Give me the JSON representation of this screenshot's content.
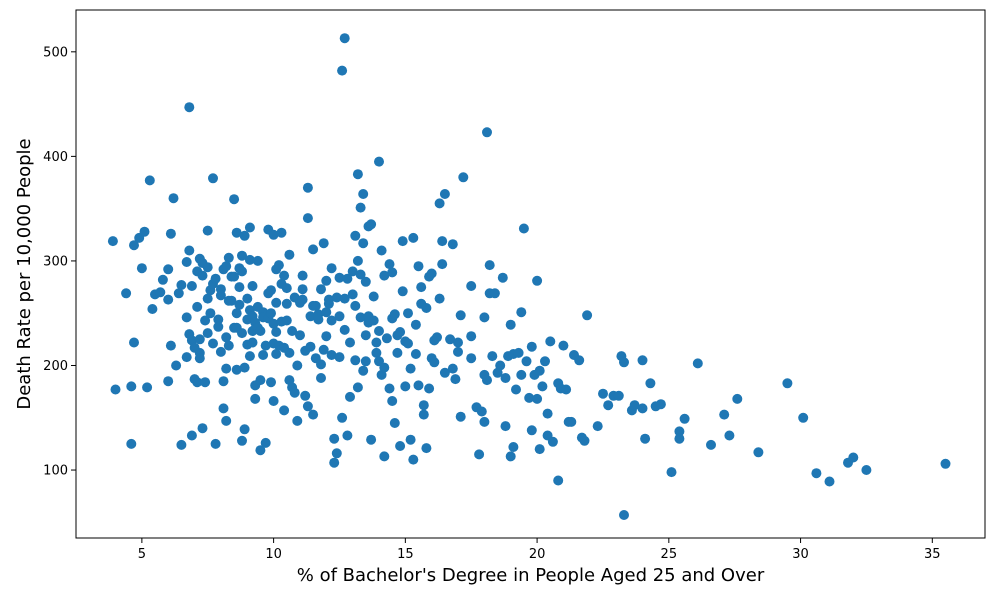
{
  "chart_data": {
    "type": "scatter",
    "title": "",
    "xlabel": "% of Bachelor's Degree in People Aged 25 and Over",
    "ylabel": "Death Rate per 10,000 People",
    "xlim": [
      2.5,
      37.0
    ],
    "ylim": [
      35,
      540
    ],
    "x_ticks": [
      5,
      10,
      15,
      20,
      25,
      30,
      35
    ],
    "y_ticks": [
      100,
      200,
      300,
      400,
      500
    ],
    "grid": false,
    "marker_color": "#1f77b4",
    "points": [
      [
        3.9,
        319
      ],
      [
        4.0,
        177
      ],
      [
        4.4,
        269
      ],
      [
        4.6,
        125
      ],
      [
        4.6,
        180
      ],
      [
        4.7,
        315
      ],
      [
        4.7,
        222
      ],
      [
        4.9,
        322
      ],
      [
        5.0,
        293
      ],
      [
        5.1,
        328
      ],
      [
        5.2,
        179
      ],
      [
        5.3,
        377
      ],
      [
        5.4,
        254
      ],
      [
        5.5,
        268
      ],
      [
        5.7,
        270
      ],
      [
        5.8,
        282
      ],
      [
        6.0,
        292
      ],
      [
        6.0,
        185
      ],
      [
        6.0,
        263
      ],
      [
        6.1,
        326
      ],
      [
        6.1,
        219
      ],
      [
        6.2,
        360
      ],
      [
        6.3,
        200
      ],
      [
        6.4,
        269
      ],
      [
        6.5,
        277
      ],
      [
        6.5,
        124
      ],
      [
        6.7,
        208
      ],
      [
        6.7,
        299
      ],
      [
        6.7,
        246
      ],
      [
        6.8,
        310
      ],
      [
        6.8,
        230
      ],
      [
        6.8,
        447
      ],
      [
        6.9,
        224
      ],
      [
        6.9,
        276
      ],
      [
        6.9,
        133
      ],
      [
        7.0,
        217
      ],
      [
        7.0,
        187
      ],
      [
        7.1,
        256
      ],
      [
        7.1,
        184
      ],
      [
        7.1,
        290
      ],
      [
        7.2,
        225
      ],
      [
        7.2,
        302
      ],
      [
        7.2,
        212
      ],
      [
        7.2,
        207
      ],
      [
        7.3,
        286
      ],
      [
        7.3,
        298
      ],
      [
        7.3,
        140
      ],
      [
        7.4,
        243
      ],
      [
        7.4,
        184
      ],
      [
        7.5,
        231
      ],
      [
        7.5,
        264
      ],
      [
        7.5,
        294
      ],
      [
        7.5,
        329
      ],
      [
        7.6,
        250
      ],
      [
        7.6,
        272
      ],
      [
        7.7,
        278
      ],
      [
        7.7,
        221
      ],
      [
        7.7,
        379
      ],
      [
        7.8,
        283
      ],
      [
        7.8,
        125
      ],
      [
        7.9,
        244
      ],
      [
        7.9,
        237
      ],
      [
        8.0,
        213
      ],
      [
        8.0,
        273
      ],
      [
        8.0,
        267
      ],
      [
        8.1,
        185
      ],
      [
        8.1,
        292
      ],
      [
        8.1,
        159
      ],
      [
        8.2,
        295
      ],
      [
        8.2,
        227
      ],
      [
        8.2,
        147
      ],
      [
        8.2,
        197
      ],
      [
        8.3,
        303
      ],
      [
        8.3,
        262
      ],
      [
        8.3,
        219
      ],
      [
        8.4,
        262
      ],
      [
        8.4,
        285
      ],
      [
        8.5,
        236
      ],
      [
        8.5,
        359
      ],
      [
        8.5,
        285
      ],
      [
        8.6,
        250
      ],
      [
        8.6,
        196
      ],
      [
        8.6,
        327
      ],
      [
        8.6,
        236
      ],
      [
        8.7,
        293
      ],
      [
        8.7,
        275
      ],
      [
        8.7,
        258
      ],
      [
        8.8,
        231
      ],
      [
        8.8,
        305
      ],
      [
        8.8,
        128
      ],
      [
        8.8,
        290
      ],
      [
        8.9,
        139
      ],
      [
        8.9,
        324
      ],
      [
        8.9,
        198
      ],
      [
        9.0,
        244
      ],
      [
        9.0,
        220
      ],
      [
        9.0,
        264
      ],
      [
        9.1,
        301
      ],
      [
        9.1,
        209
      ],
      [
        9.1,
        253
      ],
      [
        9.1,
        332
      ],
      [
        9.2,
        233
      ],
      [
        9.2,
        276
      ],
      [
        9.2,
        222
      ],
      [
        9.2,
        247
      ],
      [
        9.3,
        168
      ],
      [
        9.3,
        241
      ],
      [
        9.3,
        181
      ],
      [
        9.3,
        235
      ],
      [
        9.4,
        236
      ],
      [
        9.4,
        256
      ],
      [
        9.4,
        300
      ],
      [
        9.5,
        119
      ],
      [
        9.5,
        186
      ],
      [
        9.5,
        233
      ],
      [
        9.6,
        251
      ],
      [
        9.6,
        246
      ],
      [
        9.6,
        210
      ],
      [
        9.7,
        126
      ],
      [
        9.7,
        219
      ],
      [
        9.8,
        269
      ],
      [
        9.8,
        330
      ],
      [
        9.8,
        245
      ],
      [
        9.9,
        184
      ],
      [
        9.9,
        272
      ],
      [
        9.9,
        250
      ],
      [
        10.0,
        240
      ],
      [
        10.0,
        166
      ],
      [
        10.0,
        221
      ],
      [
        10.0,
        325
      ],
      [
        10.1,
        260
      ],
      [
        10.1,
        211
      ],
      [
        10.1,
        292
      ],
      [
        10.1,
        232
      ],
      [
        10.2,
        296
      ],
      [
        10.2,
        219
      ],
      [
        10.3,
        242
      ],
      [
        10.3,
        327
      ],
      [
        10.3,
        278
      ],
      [
        10.4,
        157
      ],
      [
        10.4,
        286
      ],
      [
        10.4,
        217
      ],
      [
        10.5,
        259
      ],
      [
        10.5,
        274
      ],
      [
        10.5,
        243
      ],
      [
        10.6,
        306
      ],
      [
        10.6,
        186
      ],
      [
        10.6,
        212
      ],
      [
        10.7,
        179
      ],
      [
        10.7,
        233
      ],
      [
        10.8,
        265
      ],
      [
        10.8,
        174
      ],
      [
        10.9,
        200
      ],
      [
        10.9,
        147
      ],
      [
        11.0,
        260
      ],
      [
        11.0,
        229
      ],
      [
        11.1,
        286
      ],
      [
        11.1,
        263
      ],
      [
        11.1,
        273
      ],
      [
        11.2,
        214
      ],
      [
        11.2,
        171
      ],
      [
        11.3,
        341
      ],
      [
        11.3,
        161
      ],
      [
        11.3,
        370
      ],
      [
        11.4,
        218
      ],
      [
        11.4,
        247
      ],
      [
        11.5,
        311
      ],
      [
        11.5,
        153
      ],
      [
        11.5,
        257
      ],
      [
        11.6,
        257
      ],
      [
        11.6,
        207
      ],
      [
        11.7,
        249
      ],
      [
        11.7,
        244
      ],
      [
        11.8,
        273
      ],
      [
        11.8,
        188
      ],
      [
        11.8,
        201
      ],
      [
        11.9,
        317
      ],
      [
        11.9,
        215
      ],
      [
        12.0,
        251
      ],
      [
        12.0,
        281
      ],
      [
        12.0,
        228
      ],
      [
        12.1,
        259
      ],
      [
        12.1,
        263
      ],
      [
        12.2,
        293
      ],
      [
        12.2,
        243
      ],
      [
        12.2,
        210
      ],
      [
        12.3,
        107
      ],
      [
        12.3,
        130
      ],
      [
        12.4,
        116
      ],
      [
        12.4,
        265
      ],
      [
        12.5,
        284
      ],
      [
        12.5,
        208
      ],
      [
        12.5,
        247
      ],
      [
        12.6,
        150
      ],
      [
        12.6,
        482
      ],
      [
        12.7,
        513
      ],
      [
        12.7,
        234
      ],
      [
        12.7,
        264
      ],
      [
        12.8,
        283
      ],
      [
        12.8,
        133
      ],
      [
        12.9,
        222
      ],
      [
        12.9,
        170
      ],
      [
        13.0,
        290
      ],
      [
        13.0,
        268
      ],
      [
        13.1,
        324
      ],
      [
        13.1,
        257
      ],
      [
        13.1,
        205
      ],
      [
        13.2,
        383
      ],
      [
        13.2,
        179
      ],
      [
        13.2,
        300
      ],
      [
        13.3,
        287
      ],
      [
        13.3,
        351
      ],
      [
        13.3,
        246
      ],
      [
        13.4,
        317
      ],
      [
        13.4,
        364
      ],
      [
        13.4,
        195
      ],
      [
        13.5,
        280
      ],
      [
        13.5,
        204
      ],
      [
        13.5,
        229
      ],
      [
        13.6,
        241
      ],
      [
        13.6,
        333
      ],
      [
        13.6,
        247
      ],
      [
        13.7,
        335
      ],
      [
        13.7,
        129
      ],
      [
        13.8,
        266
      ],
      [
        13.8,
        243
      ],
      [
        13.9,
        212
      ],
      [
        13.9,
        222
      ],
      [
        14.0,
        395
      ],
      [
        14.0,
        233
      ],
      [
        14.0,
        204
      ],
      [
        14.1,
        310
      ],
      [
        14.1,
        191
      ],
      [
        14.2,
        286
      ],
      [
        14.2,
        113
      ],
      [
        14.2,
        198
      ],
      [
        14.3,
        226
      ],
      [
        14.4,
        297
      ],
      [
        14.4,
        178
      ],
      [
        14.5,
        289
      ],
      [
        14.5,
        166
      ],
      [
        14.5,
        245
      ],
      [
        14.6,
        145
      ],
      [
        14.6,
        249
      ],
      [
        14.7,
        229
      ],
      [
        14.7,
        212
      ],
      [
        14.8,
        123
      ],
      [
        14.8,
        232
      ],
      [
        14.9,
        319
      ],
      [
        14.9,
        271
      ],
      [
        15.0,
        223
      ],
      [
        15.0,
        180
      ],
      [
        15.1,
        221
      ],
      [
        15.1,
        250
      ],
      [
        15.2,
        197
      ],
      [
        15.2,
        129
      ],
      [
        15.3,
        322
      ],
      [
        15.3,
        110
      ],
      [
        15.4,
        211
      ],
      [
        15.4,
        239
      ],
      [
        15.5,
        295
      ],
      [
        15.5,
        181
      ],
      [
        15.6,
        259
      ],
      [
        15.6,
        275
      ],
      [
        15.7,
        153
      ],
      [
        15.7,
        162
      ],
      [
        15.8,
        255
      ],
      [
        15.8,
        121
      ],
      [
        15.9,
        285
      ],
      [
        15.9,
        178
      ],
      [
        16.0,
        207
      ],
      [
        16.0,
        288
      ],
      [
        16.1,
        224
      ],
      [
        16.1,
        203
      ],
      [
        16.2,
        227
      ],
      [
        16.3,
        355
      ],
      [
        16.3,
        264
      ],
      [
        16.4,
        319
      ],
      [
        16.4,
        297
      ],
      [
        16.5,
        364
      ],
      [
        16.5,
        193
      ],
      [
        16.7,
        225
      ],
      [
        16.8,
        316
      ],
      [
        16.8,
        197
      ],
      [
        16.9,
        187
      ],
      [
        17.0,
        222
      ],
      [
        17.0,
        213
      ],
      [
        17.1,
        151
      ],
      [
        17.1,
        248
      ],
      [
        17.2,
        380
      ],
      [
        17.5,
        207
      ],
      [
        17.5,
        228
      ],
      [
        17.5,
        276
      ],
      [
        17.7,
        160
      ],
      [
        17.8,
        115
      ],
      [
        17.9,
        156
      ],
      [
        18.0,
        246
      ],
      [
        18.0,
        191
      ],
      [
        18.0,
        146
      ],
      [
        18.1,
        423
      ],
      [
        18.1,
        186
      ],
      [
        18.2,
        269
      ],
      [
        18.2,
        296
      ],
      [
        18.3,
        209
      ],
      [
        18.4,
        269
      ],
      [
        18.5,
        193
      ],
      [
        18.6,
        200
      ],
      [
        18.7,
        284
      ],
      [
        18.8,
        188
      ],
      [
        18.8,
        142
      ],
      [
        18.9,
        209
      ],
      [
        19.0,
        239
      ],
      [
        19.0,
        113
      ],
      [
        19.1,
        211
      ],
      [
        19.1,
        122
      ],
      [
        19.2,
        177
      ],
      [
        19.3,
        212
      ],
      [
        19.4,
        251
      ],
      [
        19.4,
        191
      ],
      [
        19.5,
        331
      ],
      [
        19.6,
        204
      ],
      [
        19.7,
        169
      ],
      [
        19.8,
        218
      ],
      [
        19.8,
        138
      ],
      [
        19.9,
        191
      ],
      [
        20.0,
        281
      ],
      [
        20.0,
        168
      ],
      [
        20.1,
        120
      ],
      [
        20.1,
        195
      ],
      [
        20.2,
        180
      ],
      [
        20.3,
        204
      ],
      [
        20.4,
        154
      ],
      [
        20.4,
        133
      ],
      [
        20.5,
        223
      ],
      [
        20.6,
        127
      ],
      [
        20.8,
        183
      ],
      [
        20.8,
        90
      ],
      [
        20.9,
        178
      ],
      [
        21.0,
        219
      ],
      [
        21.1,
        177
      ],
      [
        21.2,
        146
      ],
      [
        21.3,
        146
      ],
      [
        21.4,
        210
      ],
      [
        21.6,
        205
      ],
      [
        21.7,
        131
      ],
      [
        21.8,
        128
      ],
      [
        21.9,
        248
      ],
      [
        22.3,
        142
      ],
      [
        22.5,
        173
      ],
      [
        22.7,
        162
      ],
      [
        22.9,
        171
      ],
      [
        23.1,
        171
      ],
      [
        23.2,
        209
      ],
      [
        23.3,
        57
      ],
      [
        23.3,
        203
      ],
      [
        23.6,
        157
      ],
      [
        23.7,
        162
      ],
      [
        24.0,
        159
      ],
      [
        24.0,
        205
      ],
      [
        24.1,
        130
      ],
      [
        24.3,
        183
      ],
      [
        24.5,
        161
      ],
      [
        24.7,
        163
      ],
      [
        25.1,
        98
      ],
      [
        25.4,
        137
      ],
      [
        25.4,
        130
      ],
      [
        25.6,
        149
      ],
      [
        26.1,
        202
      ],
      [
        26.6,
        124
      ],
      [
        27.1,
        153
      ],
      [
        27.3,
        133
      ],
      [
        27.6,
        168
      ],
      [
        28.4,
        117
      ],
      [
        29.5,
        183
      ],
      [
        30.1,
        150
      ],
      [
        30.6,
        97
      ],
      [
        31.1,
        89
      ],
      [
        31.8,
        107
      ],
      [
        32.0,
        112
      ],
      [
        32.5,
        100
      ],
      [
        35.5,
        106
      ]
    ]
  }
}
